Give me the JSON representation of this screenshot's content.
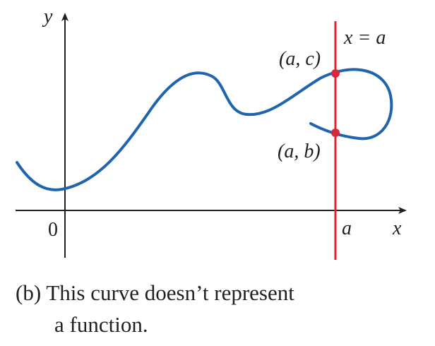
{
  "figure": {
    "axis_y_label": "y",
    "axis_x_label": "x",
    "origin_label": "0",
    "tick_a_label": "a",
    "line_label": "x = a",
    "point_upper_label": "(a, c)",
    "point_lower_label": "(a, b)"
  },
  "colors": {
    "curve": "#1f64ad",
    "vertical_line": "#e0232b",
    "points": "#d6283a",
    "axes": "#231f20"
  },
  "caption": {
    "line1": "(b) This curve doesn’t represent",
    "line2": "a function."
  }
}
